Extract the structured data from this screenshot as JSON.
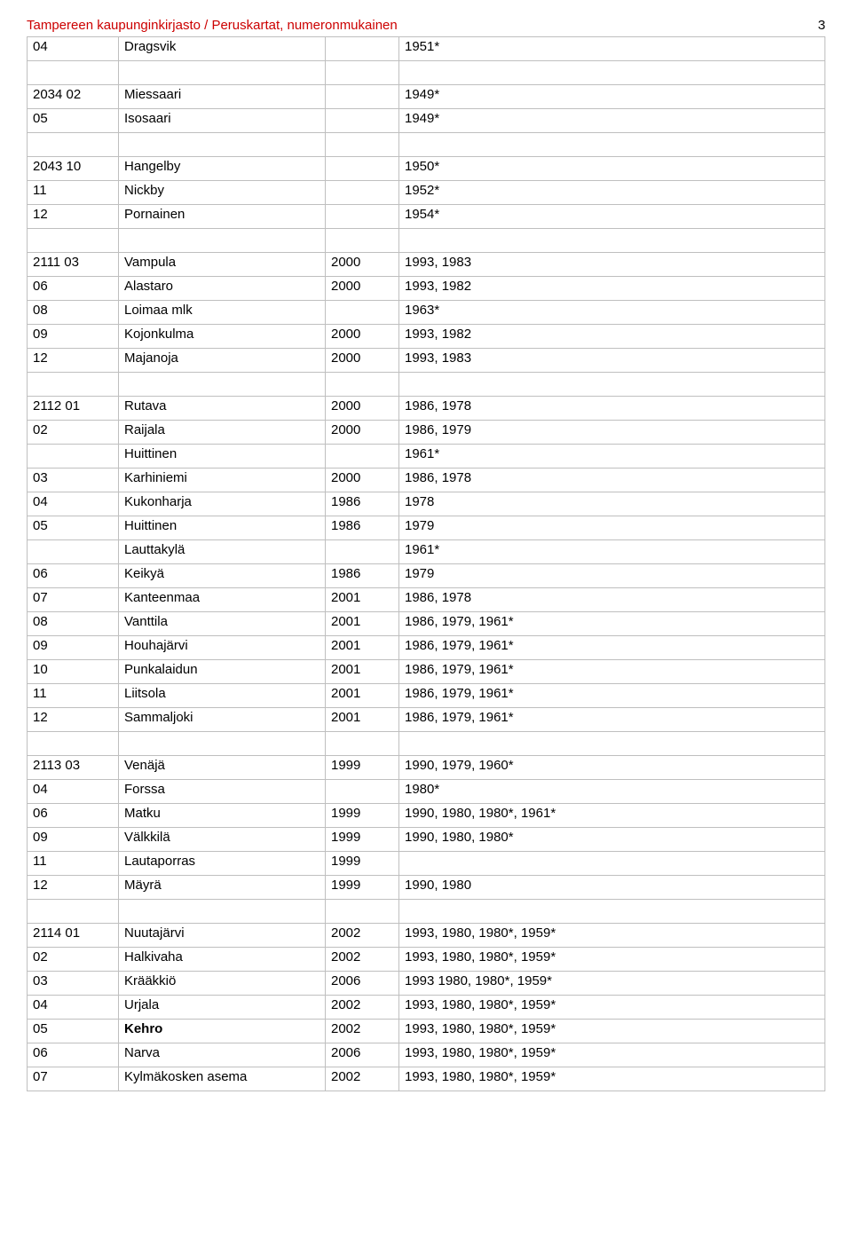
{
  "header": {
    "title": "Tampereen kaupunginkirjasto / Peruskartat, numeronmukainen",
    "page_number": "3"
  },
  "colors": {
    "header_text": "#cc0000",
    "border": "#bfbfbf",
    "background": "#ffffff",
    "text": "#000000"
  },
  "rows": [
    {
      "c1": "04",
      "c2": "Dragsvik",
      "c3": "",
      "c4": "1951*"
    },
    {
      "spacer": true
    },
    {
      "c1": "2034 02",
      "c2": "Miessaari",
      "c3": "",
      "c4": "1949*"
    },
    {
      "c1": "05",
      "c2": "Isosaari",
      "c3": "",
      "c4": "1949*"
    },
    {
      "spacer": true
    },
    {
      "c1": "2043 10",
      "c2": "Hangelby",
      "c3": "",
      "c4": "1950*"
    },
    {
      "c1": "11",
      "c2": "Nickby",
      "c3": "",
      "c4": "1952*"
    },
    {
      "c1": "12",
      "c2": "Pornainen",
      "c3": "",
      "c4": "1954*"
    },
    {
      "spacer": true
    },
    {
      "c1": "2111 03",
      "c2": "Vampula",
      "c3": "2000",
      "c4": "1993, 1983"
    },
    {
      "c1": "06",
      "c2": "Alastaro",
      "c3": "2000",
      "c4": "1993, 1982"
    },
    {
      "c1": "08",
      "c2": "Loimaa mlk",
      "c3": "",
      "c4": "1963*"
    },
    {
      "c1": "09",
      "c2": "Kojonkulma",
      "c3": "2000",
      "c4": "1993, 1982"
    },
    {
      "c1": "12",
      "c2": "Majanoja",
      "c3": "2000",
      "c4": "1993, 1983"
    },
    {
      "spacer": true
    },
    {
      "c1": "2112 01",
      "c2": "Rutava",
      "c3": "2000",
      "c4": "1986, 1978"
    },
    {
      "c1": "02",
      "c2": "Raijala",
      "c3": "2000",
      "c4": "1986, 1979"
    },
    {
      "c1": "",
      "c2": "Huittinen",
      "c3": "",
      "c4": "1961*"
    },
    {
      "c1": "03",
      "c2": "Karhiniemi",
      "c3": "2000",
      "c4": "1986, 1978"
    },
    {
      "c1": "04",
      "c2": "Kukonharja",
      "c3": "1986",
      "c4": "1978"
    },
    {
      "c1": "05",
      "c2": "Huittinen",
      "c3": "1986",
      "c4": "1979"
    },
    {
      "c1": "",
      "c2": "Lauttakylä",
      "c3": "",
      "c4": "1961*"
    },
    {
      "c1": "06",
      "c2": "Keikyä",
      "c3": "1986",
      "c4": "1979"
    },
    {
      "c1": "07",
      "c2": "Kanteenmaa",
      "c3": "2001",
      "c4": "1986, 1978"
    },
    {
      "c1": "08",
      "c2": "Vanttila",
      "c3": "2001",
      "c4": "1986, 1979, 1961*"
    },
    {
      "c1": "09",
      "c2": "Houhajärvi",
      "c3": "2001",
      "c4": "1986, 1979, 1961*"
    },
    {
      "c1": "10",
      "c2": "Punkalaidun",
      "c3": "2001",
      "c4": "1986, 1979, 1961*"
    },
    {
      "c1": "11",
      "c2": "Liitsola",
      "c3": "2001",
      "c4": "1986, 1979, 1961*"
    },
    {
      "c1": "12",
      "c2": "Sammaljoki",
      "c3": "2001",
      "c4": "1986, 1979, 1961*"
    },
    {
      "spacer": true
    },
    {
      "c1": "2113 03",
      "c2": "Venäjä",
      "c3": "1999",
      "c4": "1990, 1979, 1960*"
    },
    {
      "c1": "04",
      "c2": "Forssa",
      "c3": "",
      "c4": "1980*"
    },
    {
      "c1": "06",
      "c2": "Matku",
      "c3": "1999",
      "c4": "1990, 1980, 1980*, 1961*"
    },
    {
      "c1": "09",
      "c2": "Välkkilä",
      "c3": "1999",
      "c4": "1990, 1980, 1980*"
    },
    {
      "c1": "11",
      "c2": "Lautaporras",
      "c3": "1999",
      "c4": ""
    },
    {
      "c1": "12",
      "c2": "Mäyrä",
      "c3": "1999",
      "c4": "1990, 1980"
    },
    {
      "spacer": true
    },
    {
      "c1": "2114 01",
      "c2": "Nuutajärvi",
      "c3": "2002",
      "c4": "1993, 1980, 1980*, 1959*"
    },
    {
      "c1": "02",
      "c2": "Halkivaha",
      "c3": "2002",
      "c4": "1993, 1980, 1980*, 1959*"
    },
    {
      "c1": "03",
      "c2": "Krääkkiö",
      "c3": "2006",
      "c4": "1993 1980, 1980*, 1959*"
    },
    {
      "c1": "04",
      "c2": "Urjala",
      "c3": "2002",
      "c4": "1993, 1980, 1980*, 1959*"
    },
    {
      "c1": "05",
      "c2": "Kehro",
      "c3": "2002",
      "c4": "1993, 1980, 1980*, 1959*",
      "bold": true
    },
    {
      "c1": "06",
      "c2": "Narva",
      "c3": "2006",
      "c4": "1993, 1980, 1980*, 1959*"
    },
    {
      "c1": "07",
      "c2": "Kylmäkosken asema",
      "c3": "2002",
      "c4": "1993, 1980, 1980*, 1959*"
    }
  ]
}
